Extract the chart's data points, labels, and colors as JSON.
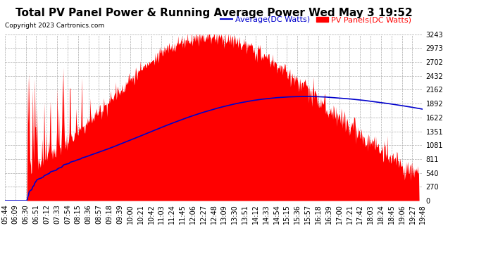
{
  "title": "Total PV Panel Power & Running Average Power Wed May 3 19:52",
  "copyright": "Copyright 2023 Cartronics.com",
  "legend_avg": "Average(DC Watts)",
  "legend_pv": "PV Panels(DC Watts)",
  "bg_color": "#ffffff",
  "plot_bg_color": "#ffffff",
  "grid_color": "#aaaaaa",
  "pv_color": "#ff0000",
  "avg_color": "#0000cc",
  "ymin": 0.0,
  "ymax": 3242.9,
  "yticks": [
    0.0,
    270.2,
    540.5,
    810.7,
    1081.0,
    1351.2,
    1621.5,
    1891.7,
    2162.0,
    2432.2,
    2702.4,
    2972.7,
    3242.9
  ],
  "x_labels": [
    "05:44",
    "06:09",
    "06:30",
    "06:51",
    "07:12",
    "07:33",
    "07:54",
    "08:15",
    "08:36",
    "08:57",
    "09:18",
    "09:39",
    "10:00",
    "10:21",
    "10:42",
    "11:03",
    "11:24",
    "11:45",
    "12:06",
    "12:27",
    "12:48",
    "13:09",
    "13:30",
    "13:51",
    "14:12",
    "14:33",
    "14:54",
    "15:15",
    "15:36",
    "15:57",
    "16:18",
    "16:39",
    "17:00",
    "17:21",
    "17:42",
    "18:03",
    "18:24",
    "18:45",
    "19:06",
    "19:27",
    "19:48"
  ],
  "title_fontsize": 11,
  "tick_fontsize": 7,
  "legend_fontsize": 8,
  "copyright_fontsize": 6.5
}
